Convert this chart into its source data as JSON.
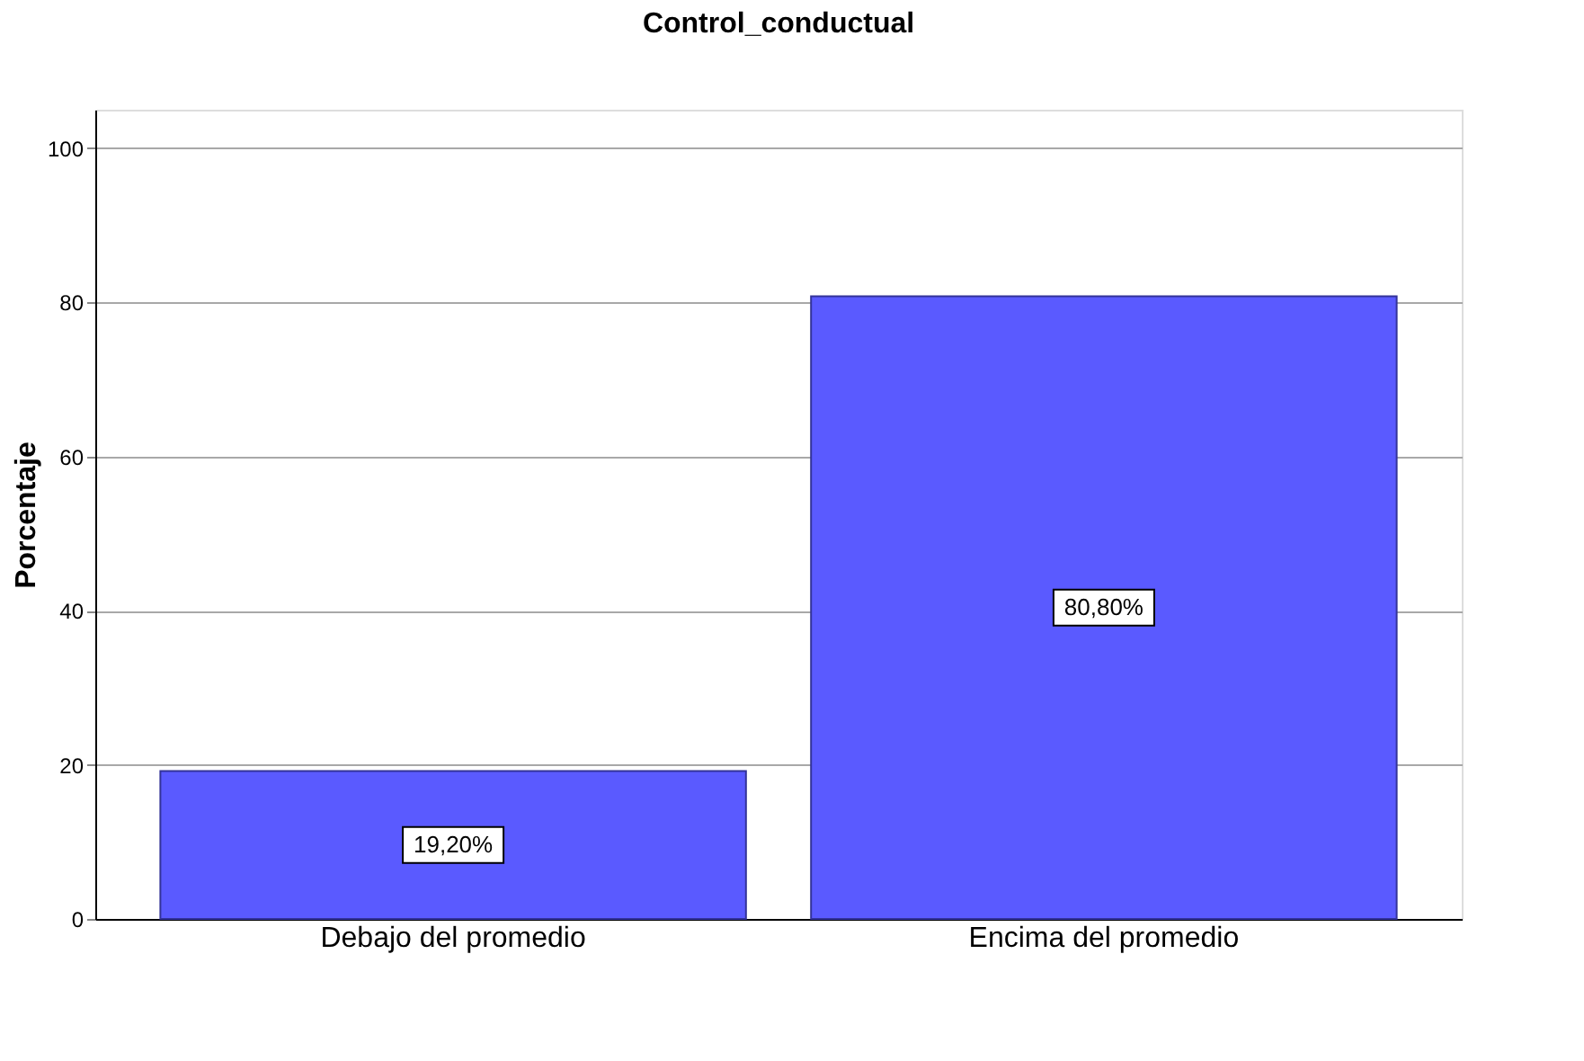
{
  "chart_data": {
    "type": "bar",
    "title": "Control_conductual",
    "ylabel": "Porcentaje",
    "categories": [
      "Debajo del promedio",
      "Encima del promedio"
    ],
    "values": [
      19.2,
      80.8
    ],
    "value_labels": [
      "19,20%",
      "80,80%"
    ],
    "color": "#5a5aff",
    "ylim": [
      0,
      105
    ],
    "yticks": [
      0,
      20,
      40,
      60,
      80,
      100
    ],
    "grid": "y"
  }
}
